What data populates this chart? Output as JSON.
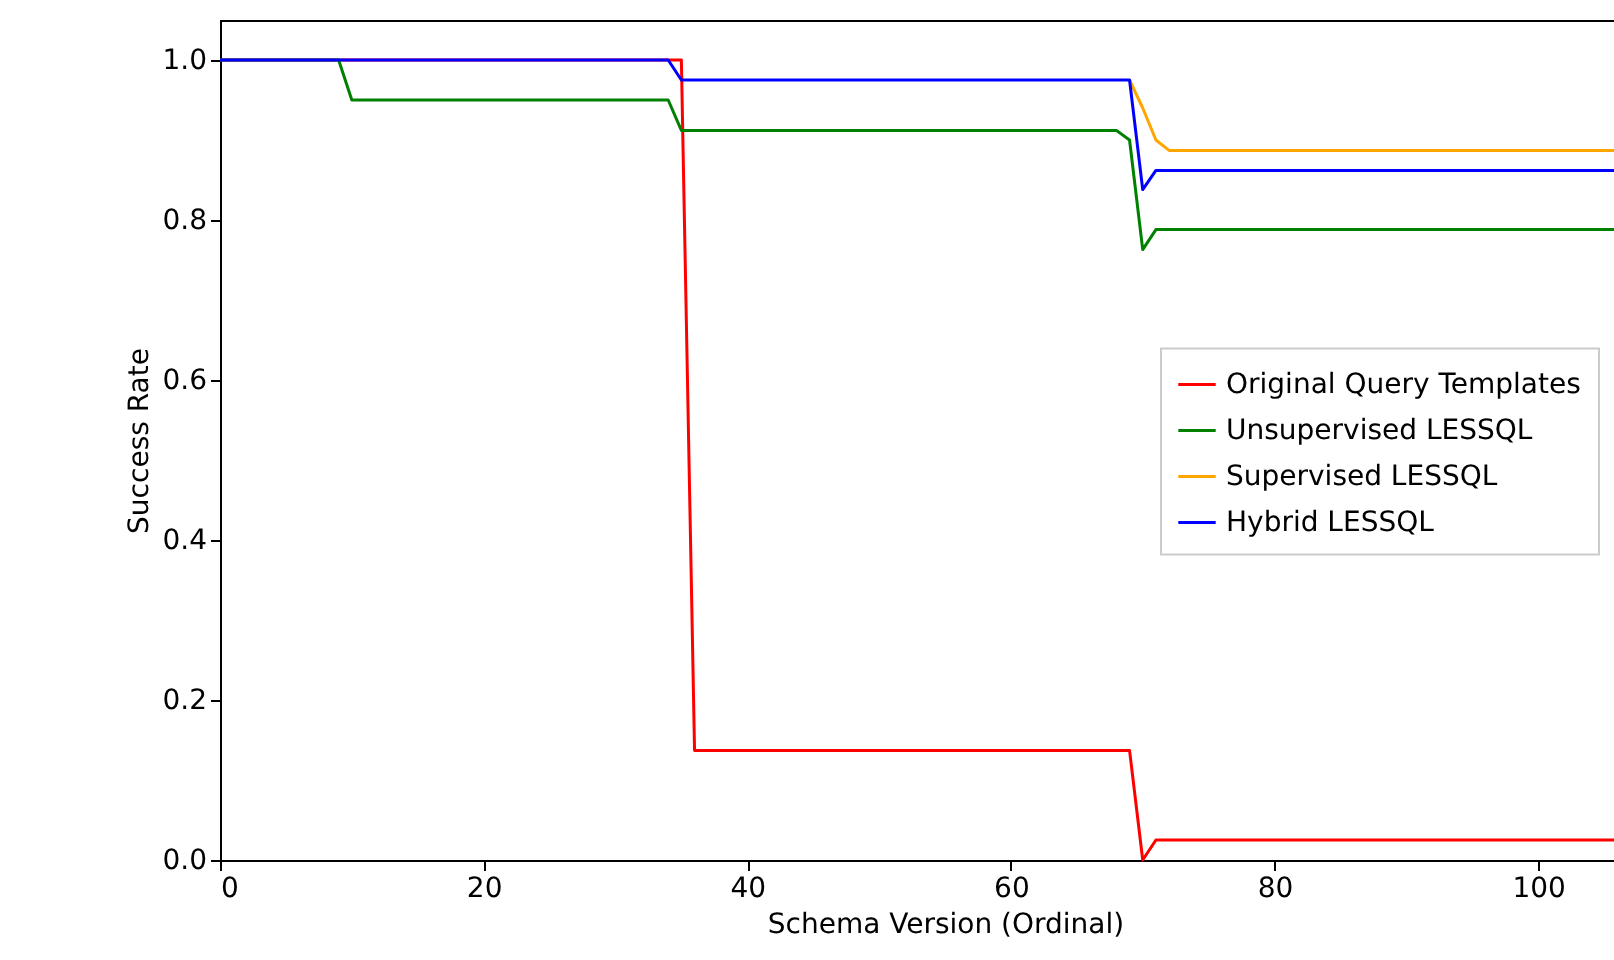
{
  "chart_data": {
    "type": "line",
    "xlabel": "Schema Version (Ordinal)",
    "ylabel": "Success Rate",
    "xlim": [
      0,
      110
    ],
    "xticks": [
      0,
      20,
      40,
      60,
      80,
      100
    ],
    "ylim": [
      0,
      1.05
    ],
    "yticks": [
      {
        "value": 0,
        "label": "0.0"
      },
      0.2,
      0.4,
      0.6,
      0.8,
      {
        "value": 1,
        "label": "1.0"
      }
    ],
    "grid": false,
    "legend": "right",
    "marker": "none",
    "line_style": "solid",
    "series": [
      {
        "name": "Original Query Templates",
        "color": "#ff0000",
        "x": [
          0,
          35,
          36,
          69,
          70,
          71,
          110
        ],
        "values": [
          1.0,
          1.0,
          0.137,
          0.137,
          0.0,
          0.025,
          0.025
        ]
      },
      {
        "name": "Unsupervised LESSQL",
        "color": "#008000",
        "x": [
          0,
          9,
          10,
          34,
          35,
          68,
          69,
          70,
          71,
          110
        ],
        "values": [
          1.0,
          1.0,
          0.95,
          0.95,
          0.912,
          0.912,
          0.9,
          0.763,
          0.788,
          0.788
        ]
      },
      {
        "name": "Supervised LESSQL",
        "color": "#ffa500",
        "x": [
          69,
          70,
          71,
          72,
          110
        ],
        "values": [
          0.975,
          0.94,
          0.9,
          0.887,
          0.887
        ]
      },
      {
        "name": "Hybrid LESSQL",
        "color": "#0000ff",
        "x": [
          0,
          34,
          35,
          69,
          70,
          71,
          110
        ],
        "values": [
          1.0,
          1.0,
          0.975,
          0.975,
          0.838,
          0.862,
          0.862
        ]
      }
    ]
  }
}
